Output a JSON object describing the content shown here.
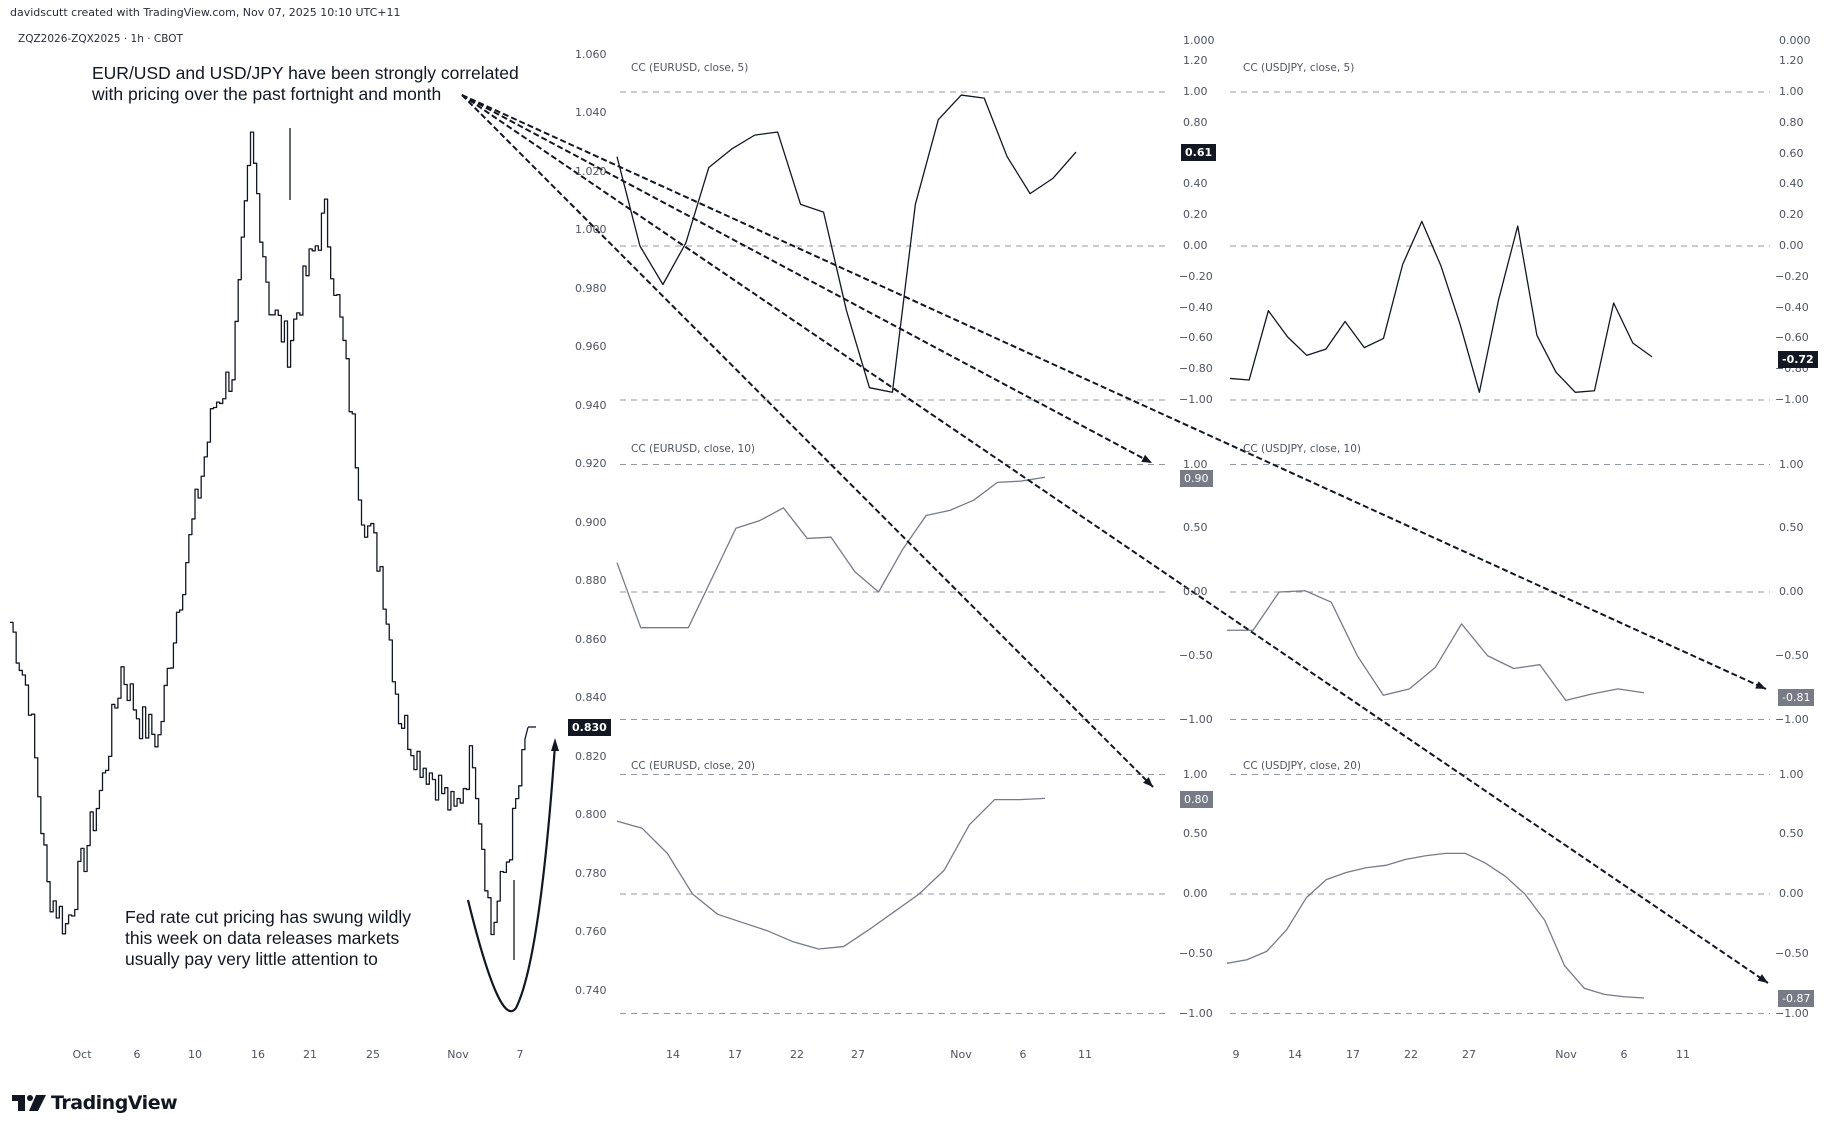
{
  "header": {
    "credit": "davidscutt created with TradingView.com, Nov 07, 2025 10:10 UTC+11",
    "symbol": "ZQZ2026-ZQX2025 · 1h · CBOT"
  },
  "annotations": {
    "top_note": "EUR/USD and USD/JPY have been strongly correlated\nwith pricing over the past fortnight and month",
    "bottom_note": "Fed rate cut pricing has swung wildly\nthis week on data releases markets\nusually pay very little attention to"
  },
  "logo": {
    "text": "TradingView"
  },
  "colors": {
    "line_dark": "#131722",
    "line_grey": "#787b86",
    "grid_dash": "#9598a1",
    "badge_dark": "#131722",
    "badge_grey": "#787b86"
  },
  "chart_data": [
    {
      "type": "line",
      "title": "ZQZ2026-ZQX2025 · 1h · CBOT",
      "xlabel": "",
      "ylabel": "",
      "ylim": [
        0.73,
        1.065
      ],
      "y_ticks": [
        "1.060",
        "1.040",
        "1.020",
        "1.000",
        "0.980",
        "0.960",
        "0.940",
        "0.920",
        "0.900",
        "0.880",
        "0.860",
        "0.840",
        "0.820",
        "0.800",
        "0.780",
        "0.760",
        "0.740"
      ],
      "x_ticks": [
        "Oct",
        "6",
        "10",
        "16",
        "21",
        "25",
        "Nov",
        "7"
      ],
      "last_value": "0.830",
      "x": [
        "Sep 30",
        "Oct 1",
        "Oct 2",
        "Oct 3",
        "Oct 6",
        "Oct 7",
        "Oct 8",
        "Oct 9",
        "Oct 10",
        "Oct 13",
        "Oct 14",
        "Oct 15",
        "Oct 16",
        "Oct 17",
        "Oct 20",
        "Oct 21",
        "Oct 22",
        "Oct 23",
        "Oct 24",
        "Oct 27",
        "Oct 28",
        "Oct 29",
        "Oct 30",
        "Oct 31",
        "Nov 3",
        "Nov 4",
        "Nov 5",
        "Nov 6",
        "Nov 7"
      ],
      "values": [
        0.866,
        0.84,
        0.775,
        0.762,
        0.786,
        0.812,
        0.85,
        0.832,
        0.826,
        0.87,
        0.905,
        0.94,
        0.952,
        1.03,
        0.975,
        0.96,
        0.985,
        1.005,
        0.96,
        0.905,
        0.885,
        0.835,
        0.82,
        0.812,
        0.8,
        0.822,
        0.76,
        0.79,
        0.83
      ]
    },
    {
      "type": "line",
      "title": "CC (EURUSD, close, 5)",
      "ylim": [
        -1.0,
        1.2
      ],
      "y_ticks": [
        "1.20",
        "1.00",
        "0.80",
        "0.60",
        "0.40",
        "0.20",
        "0.00",
        "-0.20",
        "-0.40",
        "-0.60",
        "-0.80",
        "-1.00"
      ],
      "last_value": "0.61",
      "values": [
        0.58,
        0.0,
        -0.25,
        0.02,
        0.51,
        0.63,
        0.72,
        0.74,
        0.27,
        0.22,
        -0.42,
        -0.92,
        -0.95,
        0.27,
        0.82,
        0.98,
        0.96,
        0.58,
        0.34,
        0.44,
        0.61
      ]
    },
    {
      "type": "line",
      "title": "CC (USDJPY, close, 5)",
      "ylim": [
        -1.0,
        1.2
      ],
      "y_ticks": [
        "0.000",
        "1.20",
        "1.00",
        "0.80",
        "0.60",
        "0.40",
        "0.20",
        "0.00",
        "-0.20",
        "-0.40",
        "-0.60",
        "-0.80",
        "-1.00"
      ],
      "last_value": "-0.72",
      "values": [
        -0.86,
        -0.87,
        -0.42,
        -0.59,
        -0.71,
        -0.67,
        -0.49,
        -0.66,
        -0.6,
        -0.12,
        0.16,
        -0.13,
        -0.51,
        -0.95,
        -0.35,
        0.13,
        -0.58,
        -0.82,
        -0.95,
        -0.94,
        -0.37,
        -0.63,
        -0.72
      ]
    },
    {
      "type": "line",
      "title": "CC (EURUSD, close, 10)",
      "ylim": [
        -1.0,
        1.0
      ],
      "y_ticks": [
        "1.00",
        "0.50",
        "0.00",
        "-0.50",
        "-1.00"
      ],
      "last_value": "0.90",
      "values": [
        0.23,
        -0.28,
        -0.28,
        -0.28,
        0.11,
        0.5,
        0.56,
        0.66,
        0.42,
        0.43,
        0.16,
        0.0,
        0.33,
        0.6,
        0.64,
        0.72,
        0.86,
        0.87,
        0.9
      ]
    },
    {
      "type": "line",
      "title": "CC (USDJPY, close, 10)",
      "ylim": [
        -1.0,
        1.0
      ],
      "y_ticks": [
        "1.00",
        "0.50",
        "0.00",
        "-0.50",
        "-1.00"
      ],
      "last_value": "-0.81",
      "values": [
        -0.3,
        -0.3,
        0.0,
        0.01,
        -0.08,
        -0.5,
        -0.81,
        -0.76,
        -0.59,
        -0.25,
        -0.5,
        -0.6,
        -0.57,
        -0.85,
        -0.8,
        -0.76,
        -0.79
      ]
    },
    {
      "type": "line",
      "title": "CC (EURUSD, close, 20)",
      "ylim": [
        -1.0,
        1.0
      ],
      "y_ticks": [
        "1.00",
        "0.50",
        "0.00",
        "-0.50",
        "-1.00"
      ],
      "x_ticks": [
        "14",
        "17",
        "22",
        "27",
        "Nov",
        "6",
        "11"
      ],
      "last_value": "0.80",
      "values": [
        0.61,
        0.55,
        0.34,
        0.0,
        -0.17,
        -0.24,
        -0.31,
        -0.4,
        -0.46,
        -0.44,
        -0.3,
        -0.15,
        0.0,
        0.2,
        0.58,
        0.79,
        0.79,
        0.8
      ]
    },
    {
      "type": "line",
      "title": "CC (USDJPY, close, 20)",
      "ylim": [
        -1.0,
        1.0
      ],
      "y_ticks": [
        "1.00",
        "0.50",
        "0.00",
        "-0.50",
        "-1.00"
      ],
      "x_ticks": [
        "9",
        "14",
        "17",
        "22",
        "27",
        "Nov",
        "6",
        "11"
      ],
      "last_value": "-0.87",
      "values": [
        -0.58,
        -0.55,
        -0.48,
        -0.3,
        -0.03,
        0.12,
        0.18,
        0.22,
        0.24,
        0.29,
        0.32,
        0.34,
        0.34,
        0.26,
        0.15,
        0.0,
        -0.22,
        -0.6,
        -0.79,
        -0.84,
        -0.86,
        -0.87
      ]
    }
  ]
}
